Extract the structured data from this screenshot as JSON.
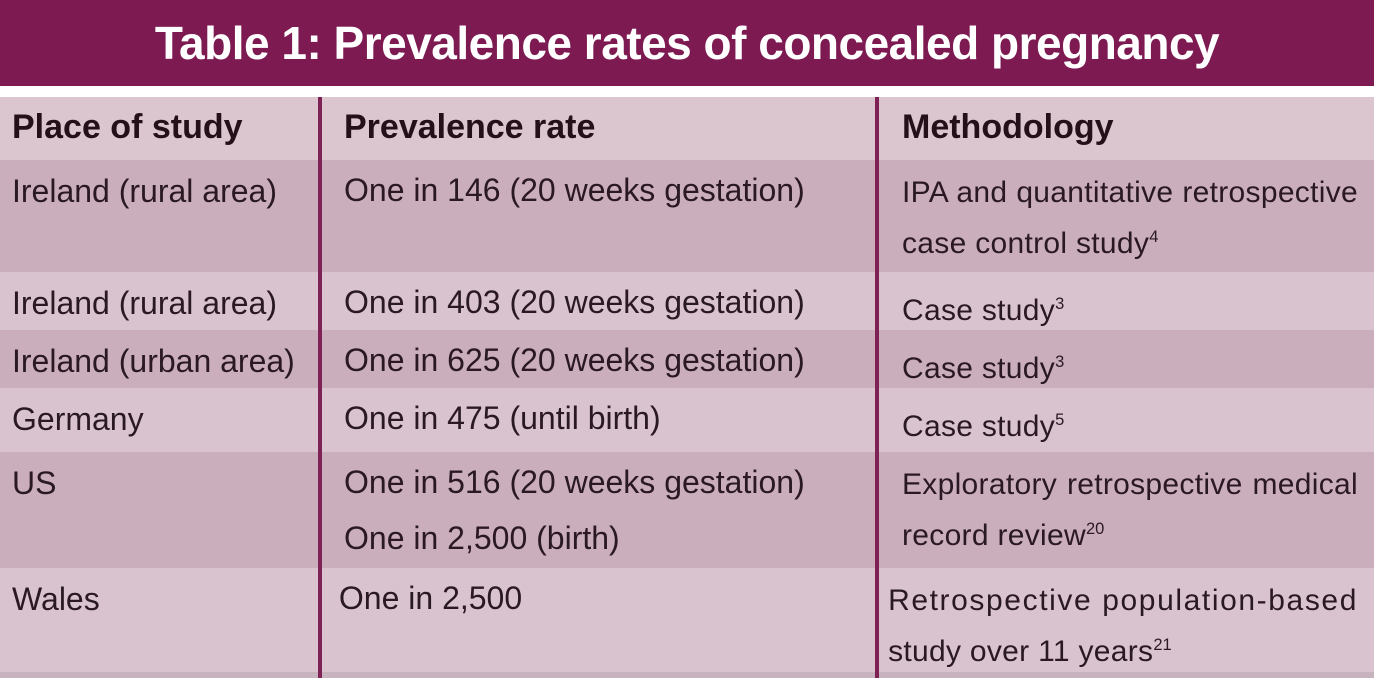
{
  "title": "Table 1: Prevalence rates of concealed pregnancy",
  "columns": {
    "place": "Place of study",
    "prevalence": "Prevalence rate",
    "methodology": "Methodology"
  },
  "chart_data": {
    "type": "table",
    "title": "Table 1: Prevalence rates of concealed pregnancy",
    "columns": [
      "Place of study",
      "Prevalence rate",
      "Methodology"
    ],
    "rows": [
      {
        "place": "Ireland (rural area)",
        "prevalence": "One in 146 (20 weeks gestation)",
        "method_line1": "IPA and quantitative retrospective",
        "method_line2": "case control study",
        "method_sup": "4"
      },
      {
        "place": "Ireland (rural area)",
        "prevalence": "One in 403 (20 weeks gestation)",
        "method_line1": "Case study",
        "method_sup": "3"
      },
      {
        "place": "Ireland (urban area)",
        "prevalence": "One in 625 (20 weeks gestation)",
        "method_line1": "Case study",
        "method_sup": "3"
      },
      {
        "place": "Germany",
        "prevalence": "One in 475 (until birth)",
        "method_line1": "Case study",
        "method_sup": "5"
      },
      {
        "place": "US",
        "prevalence": "One in 516 (20 weeks gestation)",
        "prevalence2": "One in 2,500 (birth)",
        "method_line1": "Exploratory retrospective medical",
        "method_line2": "record review",
        "method_sup": "20"
      },
      {
        "place": "Wales",
        "prevalence": "One in 2,500",
        "method_line1": "Retrospective population-based",
        "method_line2": "study over 11 years",
        "method_sup": "21"
      }
    ]
  },
  "colors": {
    "banner": "#7D1A52",
    "line": "#7E2154",
    "header_bg": "#DBC5CF",
    "row_light": "#D9C3CE",
    "row_dark": "#CBAEBC",
    "strip": "#C6B3BE",
    "text": "#2A1922",
    "header_text": "#231018",
    "title_text": "#FFFFFF"
  }
}
